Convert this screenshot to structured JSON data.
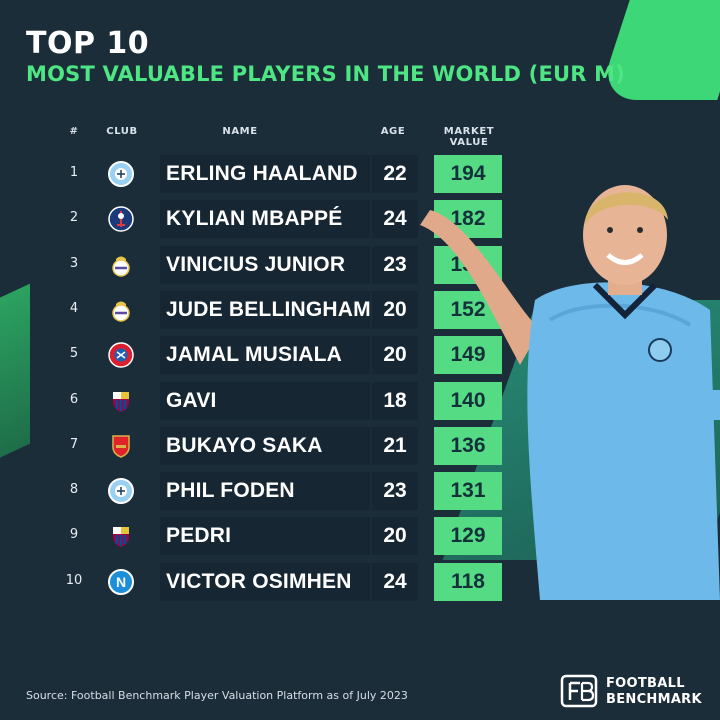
{
  "title": "TOP 10",
  "subtitle": "MOST VALUABLE PLAYERS IN THE WORLD (EUR M)",
  "headers": {
    "rank": "#",
    "club": "CLUB",
    "name": "NAME",
    "age": "AGE",
    "market_value": "MARKET VALUE"
  },
  "source": "Source: Football Benchmark Player Valuation Platform as of July 2023",
  "brand": {
    "line1": "FOOTBALL",
    "line2": "BENCHMARK"
  },
  "colors": {
    "background": "#1c2d3a",
    "accent_green": "#55db84",
    "subtitle_green": "#4ee583",
    "row_bg": "#172633"
  },
  "chart_data": {
    "type": "table",
    "columns": [
      "#",
      "CLUB",
      "NAME",
      "AGE",
      "MARKET VALUE"
    ],
    "rows": [
      {
        "rank": "1",
        "club": "Manchester City",
        "club_icon": "man-city-crest-icon",
        "name": "ERLING HAALAND",
        "age": "22",
        "value": "194"
      },
      {
        "rank": "2",
        "club": "Paris Saint-Germain",
        "club_icon": "psg-crest-icon",
        "name": "KYLIAN MBAPPÉ",
        "age": "24",
        "value": "182"
      },
      {
        "rank": "3",
        "club": "Real Madrid",
        "club_icon": "real-madrid-crest-icon",
        "name": "VINICIUS JUNIOR",
        "age": "23",
        "value": "157"
      },
      {
        "rank": "4",
        "club": "Real Madrid",
        "club_icon": "real-madrid-crest-icon",
        "name": "JUDE BELLINGHAM",
        "age": "20",
        "value": "152"
      },
      {
        "rank": "5",
        "club": "Bayern Munich",
        "club_icon": "bayern-crest-icon",
        "name": "JAMAL MUSIALA",
        "age": "20",
        "value": "149"
      },
      {
        "rank": "6",
        "club": "FC Barcelona",
        "club_icon": "barcelona-crest-icon",
        "name": "GAVI",
        "age": "18",
        "value": "140"
      },
      {
        "rank": "7",
        "club": "Arsenal",
        "club_icon": "arsenal-crest-icon",
        "name": "BUKAYO SAKA",
        "age": "21",
        "value": "136"
      },
      {
        "rank": "8",
        "club": "Manchester City",
        "club_icon": "man-city-crest-icon",
        "name": "PHIL FODEN",
        "age": "23",
        "value": "131"
      },
      {
        "rank": "9",
        "club": "FC Barcelona",
        "club_icon": "barcelona-crest-icon",
        "name": "PEDRI",
        "age": "20",
        "value": "129"
      },
      {
        "rank": "10",
        "club": "Napoli",
        "club_icon": "napoli-crest-icon",
        "name": "VICTOR OSIMHEN",
        "age": "24",
        "value": "118"
      }
    ]
  }
}
